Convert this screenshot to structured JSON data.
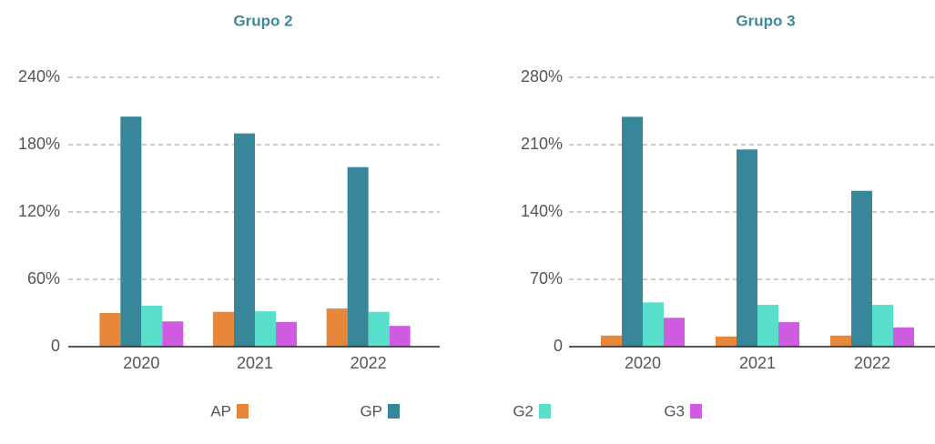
{
  "chart_data": [
    {
      "type": "bar",
      "title": "Grupo 2",
      "categories": [
        "2020",
        "2021",
        "2022"
      ],
      "series": [
        {
          "name": "AP",
          "color": "#e8873a",
          "values": [
            30,
            31,
            34
          ]
        },
        {
          "name": "GP",
          "color": "#38869a",
          "values": [
            205,
            190,
            160
          ]
        },
        {
          "name": "G2",
          "color": "#58e0cc",
          "values": [
            36.5,
            31.5,
            31
          ]
        },
        {
          "name": "G3",
          "color": "#cf5be0",
          "values": [
            22.5,
            22,
            18.5
          ]
        }
      ],
      "ylim": [
        0,
        240
      ],
      "yticks": [
        0,
        {
          "value": 60,
          "label": "60%"
        },
        {
          "value": 120,
          "label": "120%"
        },
        {
          "value": 180,
          "label": "180%"
        },
        {
          "value": 240,
          "label": "240%"
        }
      ],
      "grid": true
    },
    {
      "type": "bar",
      "title": "Grupo 3",
      "categories": [
        "2020",
        "2021",
        "2022"
      ],
      "series": [
        {
          "name": "AP",
          "color": "#e8873a",
          "values": [
            11.5,
            10.5,
            11.5
          ]
        },
        {
          "name": "GP",
          "color": "#38869a",
          "values": [
            239,
            205,
            162
          ]
        },
        {
          "name": "G2",
          "color": "#58e0cc",
          "values": [
            46,
            43.5,
            43.5
          ]
        },
        {
          "name": "G3",
          "color": "#cf5be0",
          "values": [
            30,
            25.5,
            20
          ]
        }
      ],
      "ylim": [
        0,
        280
      ],
      "yticks": [
        0,
        {
          "value": 70,
          "label": "70%"
        },
        {
          "value": 140,
          "label": "140%"
        },
        {
          "value": 210,
          "label": "210%"
        },
        {
          "value": 280,
          "label": "280%"
        }
      ],
      "grid": true
    }
  ]
}
